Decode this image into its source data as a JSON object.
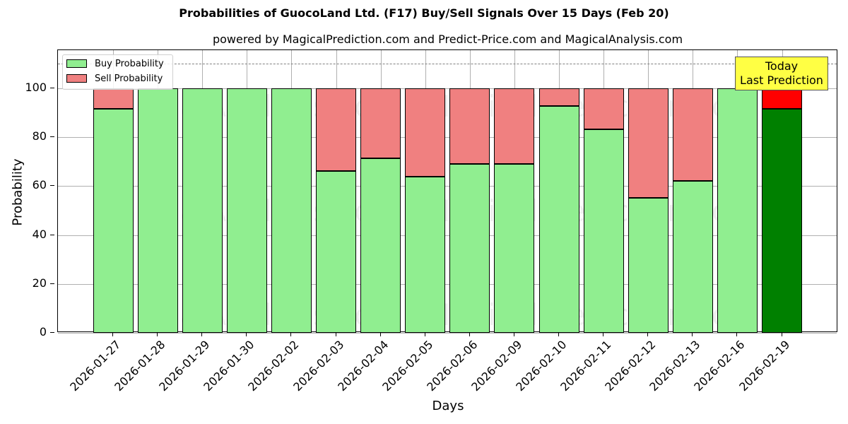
{
  "chart_data": {
    "type": "bar",
    "stacked": true,
    "title": "Probabilities of GuocoLand Ltd. (F17) Buy/Sell Signals Over 15 Days (Feb 20)",
    "subtitle": "powered by MagicalPrediction.com and Predict-Price.com and MagicalAnalysis.com",
    "xlabel": "Days",
    "ylabel": "Probability",
    "ylim": [
      0,
      115
    ],
    "yticks": [
      0,
      20,
      40,
      60,
      80,
      100
    ],
    "grid": true,
    "legend_position": "upper left",
    "reference_line": {
      "y": 110,
      "style": "dashed",
      "color": "#808080"
    },
    "categories": [
      "2026-01-27",
      "2026-01-28",
      "2026-01-29",
      "2026-01-30",
      "2026-02-02",
      "2026-02-03",
      "2026-02-04",
      "2026-02-05",
      "2026-02-06",
      "2026-02-09",
      "2026-02-10",
      "2026-02-11",
      "2026-02-12",
      "2026-02-13",
      "2026-02-16",
      "2026-02-19"
    ],
    "series": [
      {
        "name": "Buy Probability",
        "color": "#90ee90",
        "values": [
          91.6,
          100,
          100,
          100,
          100,
          66.2,
          71.4,
          63.9,
          69.1,
          69.1,
          92.8,
          83.2,
          55.2,
          62.1,
          100,
          91.6
        ]
      },
      {
        "name": "Sell Probability",
        "color": "#f08080",
        "values": [
          8.4,
          0,
          0,
          0,
          0,
          33.8,
          28.6,
          36.1,
          30.9,
          30.9,
          7.2,
          16.8,
          44.8,
          37.9,
          0,
          8.4
        ]
      }
    ],
    "highlight": {
      "index": 15,
      "buy_color": "#008000",
      "sell_color": "#ff0000"
    },
    "annotation": {
      "text_line1": "Today",
      "text_line2": "Last Prediction",
      "background": "#ffff44"
    }
  },
  "legend": {
    "buy": "Buy Probability",
    "sell": "Sell Probability"
  },
  "watermarks": [
    "MagicalAnalysis.com",
    "MagicalPrediction.com"
  ]
}
